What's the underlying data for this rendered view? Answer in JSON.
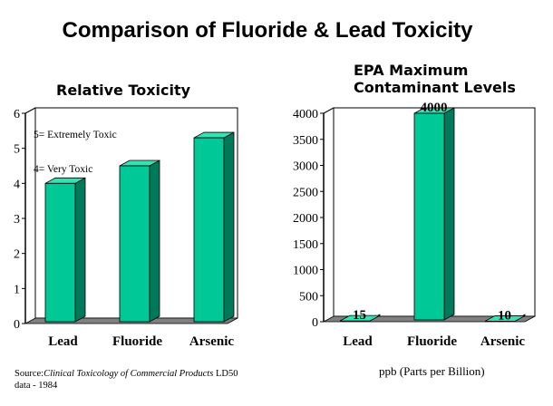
{
  "title": "Comparison of Fluoride & Lead Toxicity",
  "colors": {
    "bar_front": "#00c896",
    "bar_side": "#00785a",
    "bar_top": "#33e3b4",
    "floor": "#808080",
    "line": "#000000"
  },
  "chart_data": [
    {
      "type": "bar",
      "title": "Relative Toxicity",
      "categories": [
        "Lead",
        "Fluoride",
        "Arsenic"
      ],
      "values": [
        4,
        4.5,
        5.3
      ],
      "ylim": [
        0,
        6
      ],
      "yticks": [
        "0",
        "1",
        "2",
        "3",
        "4",
        "5",
        "6"
      ],
      "grid": false,
      "annotations": [
        "5= Extremely Toxic",
        "4= Very Toxic"
      ]
    },
    {
      "type": "bar",
      "title": "EPA Maximum Contaminant Levels",
      "categories": [
        "Lead",
        "Fluoride",
        "Arsenic"
      ],
      "values": [
        15,
        4000,
        10
      ],
      "data_labels": [
        "15",
        "4000",
        "10"
      ],
      "ylim": [
        0,
        4000
      ],
      "yticks": [
        "0",
        "500",
        "1000",
        "1500",
        "2000",
        "2500",
        "3000",
        "3500",
        "4000"
      ],
      "grid": false
    }
  ],
  "source": {
    "prefix": "Source:",
    "italic": "Clinical Toxicology of Commercial Products",
    "suffix": " LD50 data - 1984"
  },
  "unit_note": "ppb (Parts per Billion)"
}
